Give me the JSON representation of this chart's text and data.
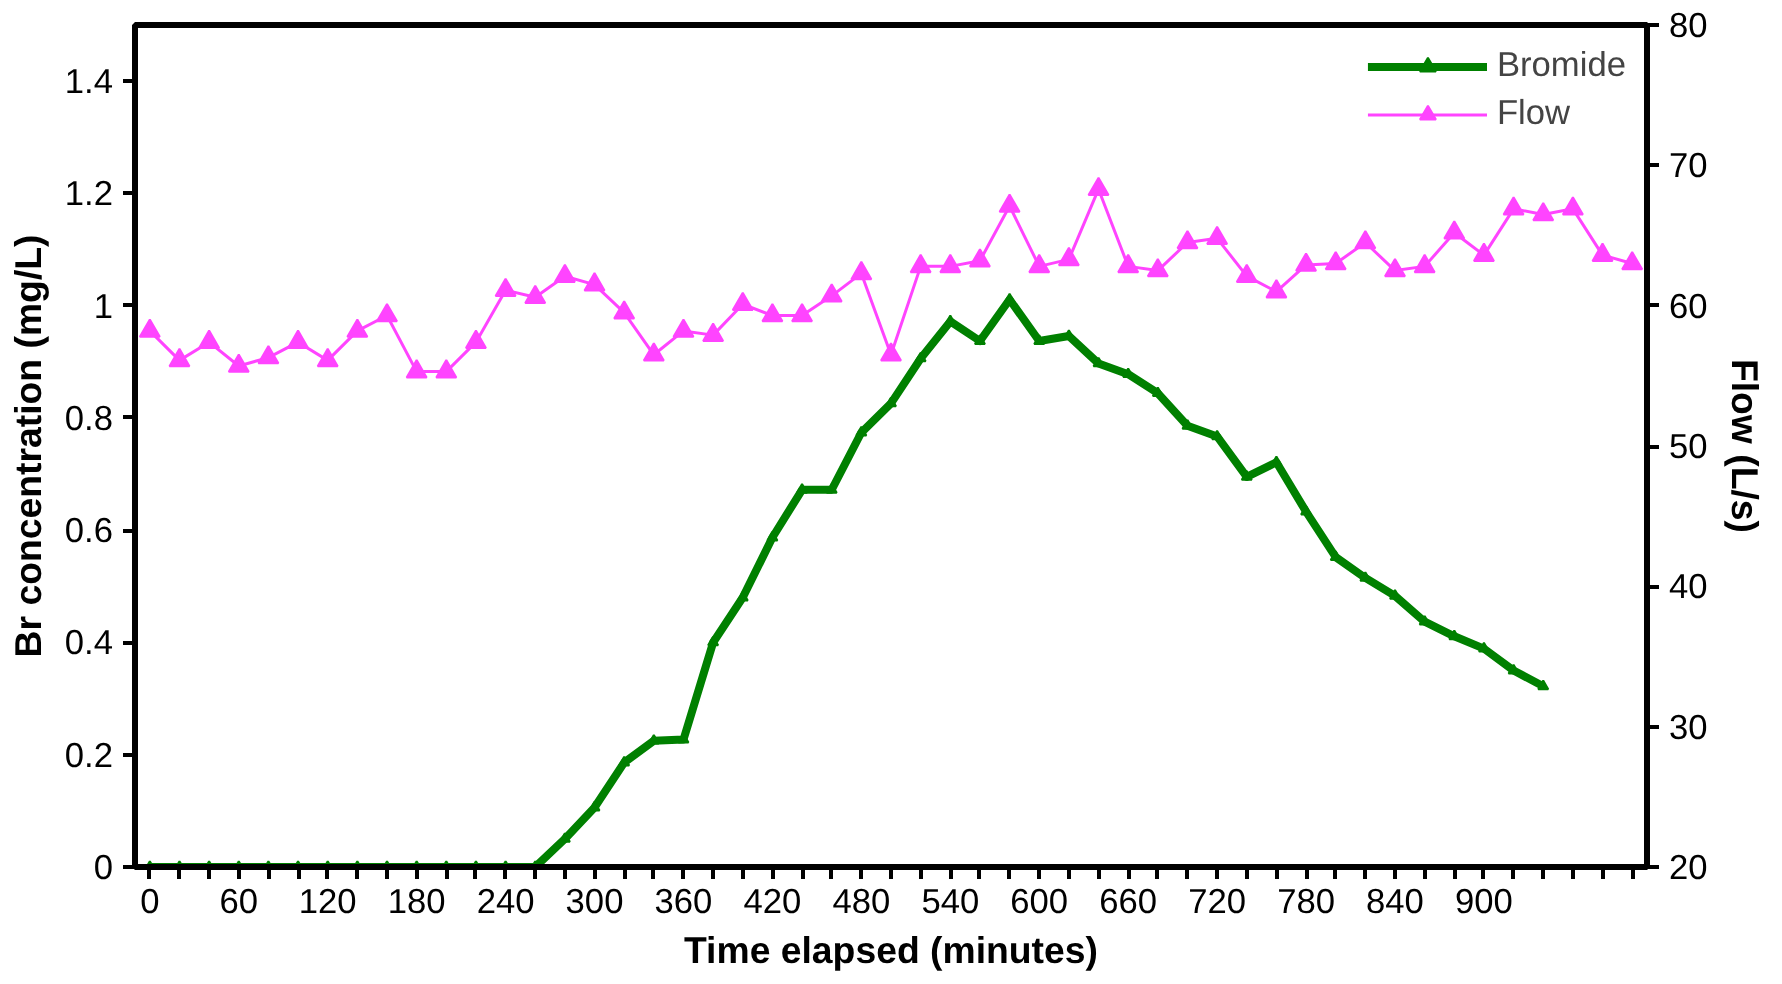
{
  "chart_data": {
    "type": "line",
    "xlabel": "Time elapsed (minutes)",
    "ylabel": "Br concentration (mg/L)",
    "y2label": "Flow (L/s)",
    "categories": [
      "0",
      null,
      null,
      "60",
      null,
      null,
      "120",
      null,
      null,
      "180",
      null,
      null,
      "240",
      null,
      null,
      "300",
      null,
      null,
      "360",
      null,
      null,
      "420",
      null,
      null,
      "480",
      null,
      null,
      "540",
      null,
      null,
      "600",
      null,
      null,
      "660",
      null,
      null,
      "720",
      null,
      null,
      "780",
      null,
      null,
      "840",
      null,
      null,
      "900",
      null,
      null,
      null,
      null,
      null
    ],
    "series": [
      {
        "name": "Bromide",
        "color": "#008000",
        "marker": "triangle",
        "values": [
          0,
          0,
          0,
          0,
          0,
          0,
          0,
          0,
          0,
          0,
          0,
          0,
          0,
          0,
          0.05,
          0.106,
          0.186,
          0.225,
          0.227,
          0.4,
          0.48,
          0.587,
          0.672,
          0.672,
          0.774,
          0.826,
          0.906,
          0.972,
          0.937,
          1.011,
          0.937,
          0.946,
          0.897,
          0.878,
          0.844,
          0.786,
          0.767,
          0.695,
          0.721,
          0.633,
          0.552,
          0.515,
          0.483,
          0.437,
          0.411,
          0.389,
          0.35,
          0.322,
          null,
          null,
          null
        ]
      },
      {
        "name": "Flow",
        "color": "#ff44ff",
        "marker": "triangle",
        "axis": "y2",
        "values": [
          58.2,
          56.1,
          57.4,
          55.7,
          56.3,
          57.4,
          56.1,
          58.2,
          59.3,
          55.3,
          55.3,
          57.4,
          61.1,
          60.6,
          62.1,
          61.5,
          59.5,
          56.5,
          58.2,
          57.9,
          60.1,
          59.3,
          59.3,
          60.7,
          62.3,
          56.5,
          62.8,
          62.8,
          63.2,
          67.1,
          62.8,
          63.3,
          68.3,
          62.8,
          62.5,
          64.5,
          64.8,
          62.1,
          61.0,
          62.9,
          63.0,
          64.5,
          62.5,
          62.8,
          65.2,
          63.6,
          66.9,
          66.5,
          66.9,
          63.6,
          63.0
        ]
      }
    ],
    "ylim": [
      0,
      1.5
    ],
    "yticks": [
      0,
      {
        "value": 0.2,
        "label": "0.2"
      },
      {
        "value": 0.4,
        "label": "0.4"
      },
      {
        "value": 0.6,
        "label": "0.6"
      },
      {
        "value": 0.8,
        "label": "0.8"
      },
      1,
      {
        "value": 1.2,
        "label": "1.2"
      },
      {
        "value": 1.4,
        "label": "1.4"
      }
    ],
    "y2lim": [
      20,
      80
    ],
    "y2ticks": [
      20,
      30,
      40,
      50,
      60,
      70,
      80
    ],
    "grid": false,
    "legend": "top right",
    "line_style": "solid"
  }
}
